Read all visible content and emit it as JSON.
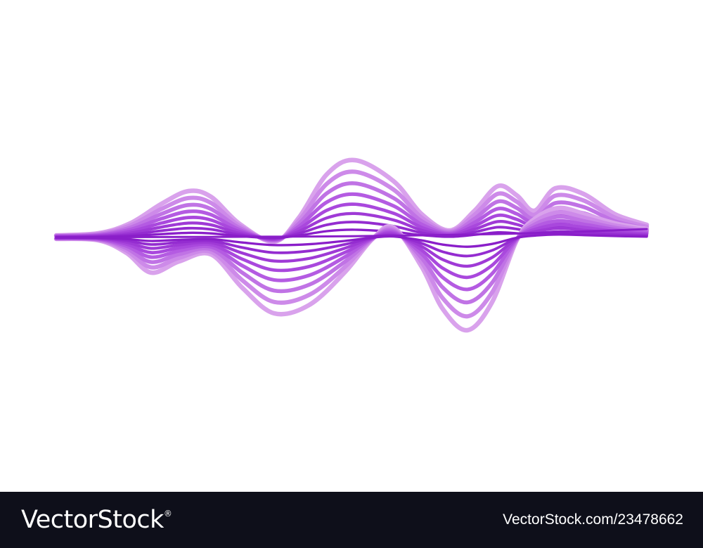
{
  "footer": {
    "brand": "VectorStock",
    "registered_mark": "®",
    "image_id": "VectorStock.com/23478662"
  },
  "artwork": {
    "icon": "sound-wave-icon",
    "colors": {
      "background": "#ffffff",
      "light_lilac": "#d9a2ec",
      "medium_violet": "#ae4fe0",
      "deep_purple": "#8a1ec9",
      "footer_background": "#0e0f1a",
      "footer_text": "#ffffff"
    }
  }
}
